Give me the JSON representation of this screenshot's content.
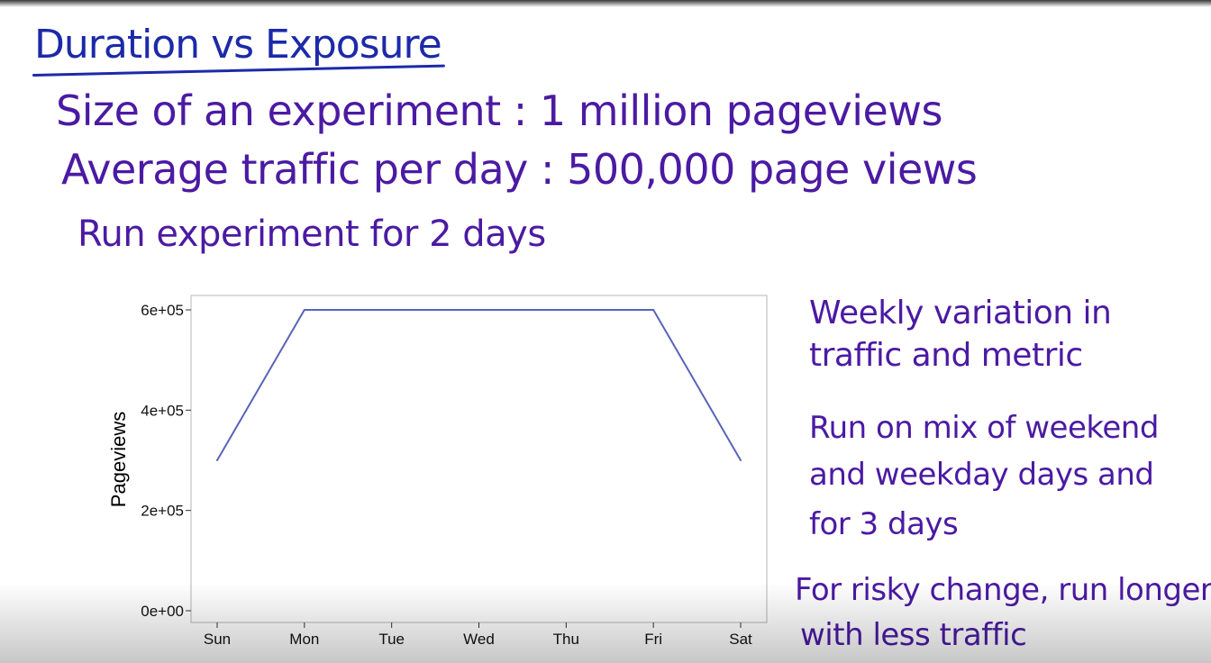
{
  "slide": {
    "title": "Duration vs Exposure",
    "lines": [
      "Size of an experiment : 1 million pageviews",
      "Average traffic per day : 500,000 page views",
      "Run experiment for 2 days"
    ],
    "notes": [
      "Weekly variation in",
      "traffic and metric",
      "Run on mix of weekend",
      "and weekday days and",
      "for 3 days",
      "For risky change, run longer",
      "with less traffic"
    ]
  },
  "colors": {
    "handwriting": "#4b1aa3",
    "title_ink": "#1c2aa8",
    "line": "#5a63b8"
  },
  "chart_data": {
    "type": "line",
    "categories": [
      "Sun",
      "Mon",
      "Tue",
      "Wed",
      "Thu",
      "Fri",
      "Sat"
    ],
    "series": [
      {
        "values": [
          300000,
          600000,
          600000,
          600000,
          600000,
          600000,
          300000
        ]
      }
    ],
    "ylabel": "Pageviews",
    "xlabel": "",
    "title": "",
    "ylim": [
      0,
      600000
    ],
    "yticks": [
      0,
      200000,
      400000,
      600000
    ],
    "ytick_labels": [
      "0e+00",
      "2e+05",
      "4e+05",
      "6e+05"
    ],
    "grid": false,
    "legend": "none"
  }
}
